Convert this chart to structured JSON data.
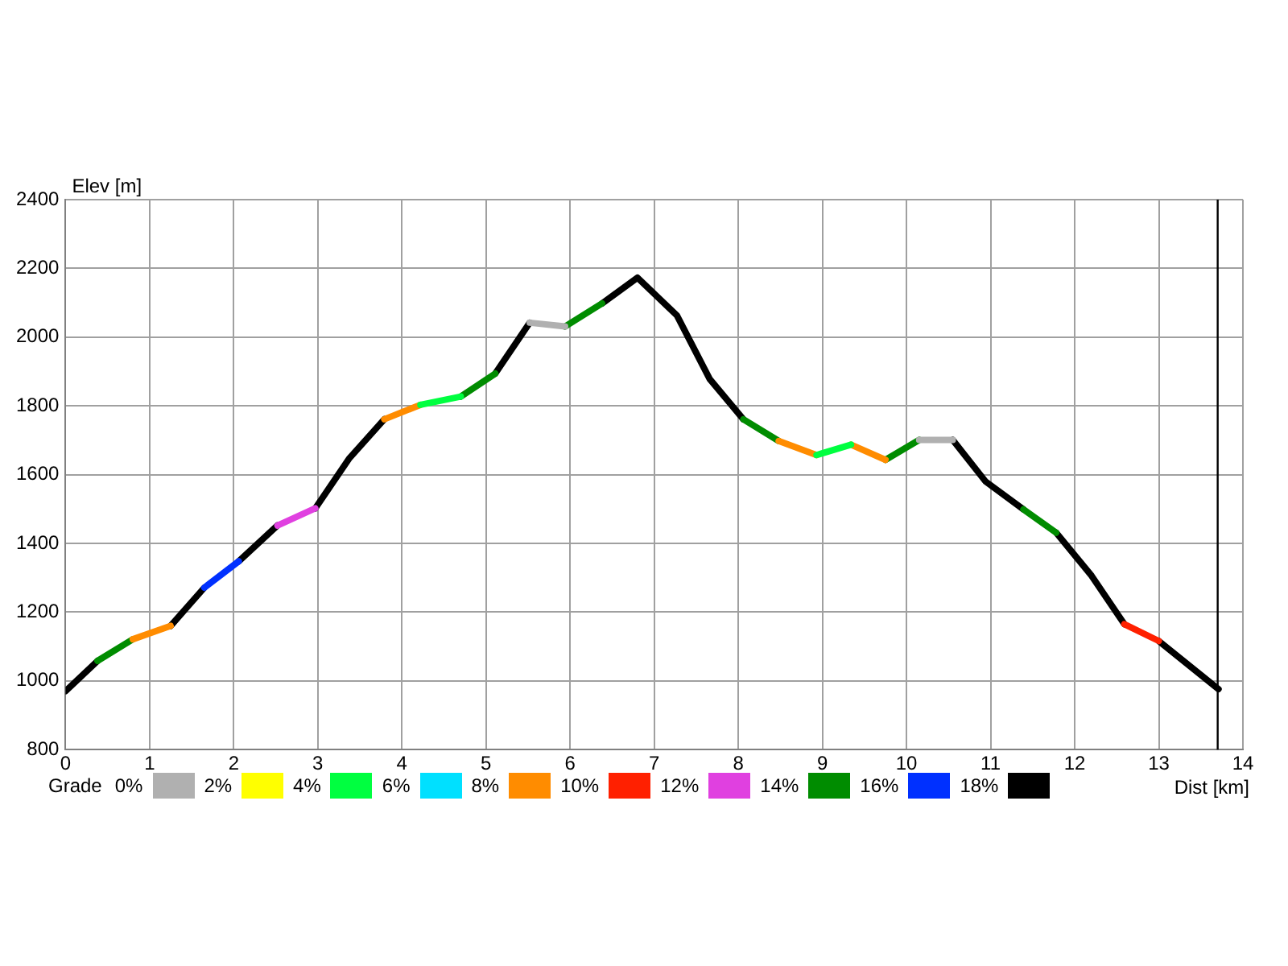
{
  "chart_data": {
    "type": "line",
    "ylabel": "Elev [m]",
    "xlabel": "Dist [km]",
    "legend_title": "Grade",
    "legend": "bottom",
    "grid": true,
    "marker": "none",
    "line_style": "solid",
    "xlim": [
      0,
      14
    ],
    "xticks": [
      0,
      1,
      2,
      3,
      4,
      5,
      6,
      7,
      8,
      9,
      10,
      11,
      12,
      13,
      14
    ],
    "ylim": [
      800,
      2400
    ],
    "yticks": [
      800,
      1000,
      1200,
      1400,
      1600,
      1800,
      2000,
      2200,
      2400
    ],
    "ref_lines": [
      {
        "axis": "x",
        "value": 13.7,
        "color": "#000000"
      }
    ],
    "series": [
      {
        "name": "0%",
        "color": "#b0b0b0",
        "x": [
          5.52,
          5.94
        ],
        "values": [
          2042,
          2031
        ]
      },
      {
        "color": "#b0b0b0",
        "x": [
          10.15,
          10.55
        ],
        "values": [
          1701,
          1701
        ]
      },
      {
        "name": "2%",
        "color": "#ffff00"
      },
      {
        "name": "4%",
        "color": "#00ff40",
        "x": [
          4.22,
          4.7
        ],
        "values": [
          1803,
          1827
        ]
      },
      {
        "color": "#00ff40",
        "x": [
          8.93,
          9.34
        ],
        "values": [
          1657,
          1687
        ]
      },
      {
        "name": "6%",
        "color": "#00e0ff"
      },
      {
        "name": "8%",
        "color": "#ff8c00",
        "x": [
          0.8,
          1.25
        ],
        "values": [
          1121,
          1160
        ]
      },
      {
        "color": "#ff8c00",
        "x": [
          3.79,
          4.22
        ],
        "values": [
          1761,
          1803
        ]
      },
      {
        "color": "#ff8c00",
        "x": [
          8.48,
          8.93
        ],
        "values": [
          1698,
          1657
        ]
      },
      {
        "color": "#ff8c00",
        "x": [
          9.34,
          9.75
        ],
        "values": [
          1687,
          1643
        ]
      },
      {
        "name": "10%",
        "color": "#ff2000",
        "x": [
          12.59,
          13.0
        ],
        "values": [
          1165,
          1116
        ]
      },
      {
        "name": "12%",
        "color": "#e040e0",
        "x": [
          2.52,
          2.97
        ],
        "values": [
          1452,
          1502
        ]
      },
      {
        "name": "14%",
        "color": "#008c00",
        "x": [
          0.38,
          0.8
        ],
        "values": [
          1058,
          1121
        ]
      },
      {
        "color": "#008c00",
        "x": [
          4.7,
          5.11
        ],
        "values": [
          1827,
          1894
        ]
      },
      {
        "color": "#008c00",
        "x": [
          5.94,
          6.38
        ],
        "values": [
          2031,
          2098
        ]
      },
      {
        "color": "#008c00",
        "x": [
          8.06,
          8.48
        ],
        "values": [
          1761,
          1698
        ]
      },
      {
        "color": "#008c00",
        "x": [
          9.75,
          10.15
        ],
        "values": [
          1643,
          1701
        ]
      },
      {
        "color": "#008c00",
        "x": [
          11.39,
          11.78
        ],
        "values": [
          1499,
          1431
        ]
      },
      {
        "name": "16%",
        "color": "#0030ff",
        "x": [
          1.65,
          2.06
        ],
        "values": [
          1271,
          1348
        ]
      },
      {
        "name": "18%",
        "color": "#000000",
        "x": [
          0,
          0.38
        ],
        "values": [
          970,
          1058
        ]
      },
      {
        "color": "#000000",
        "x": [
          1.25,
          1.65
        ],
        "values": [
          1160,
          1271
        ]
      },
      {
        "color": "#000000",
        "x": [
          2.06,
          2.52
        ],
        "values": [
          1348,
          1452
        ]
      },
      {
        "color": "#000000",
        "x": [
          2.97,
          3.37,
          3.79
        ],
        "values": [
          1502,
          1646,
          1761
        ]
      },
      {
        "color": "#000000",
        "x": [
          5.11,
          5.52
        ],
        "values": [
          1894,
          2042
        ]
      },
      {
        "color": "#000000",
        "x": [
          6.38,
          6.8,
          7.27,
          7.66,
          8.06
        ],
        "values": [
          2098,
          2173,
          2063,
          1878,
          1761
        ]
      },
      {
        "color": "#000000",
        "x": [
          10.55,
          10.94,
          11.39
        ],
        "values": [
          1701,
          1580,
          1499
        ]
      },
      {
        "color": "#000000",
        "x": [
          11.78,
          12.2,
          12.59
        ],
        "values": [
          1431,
          1306,
          1165
        ]
      },
      {
        "color": "#000000",
        "x": [
          13.0,
          13.71
        ],
        "values": [
          1116,
          976
        ]
      }
    ]
  }
}
